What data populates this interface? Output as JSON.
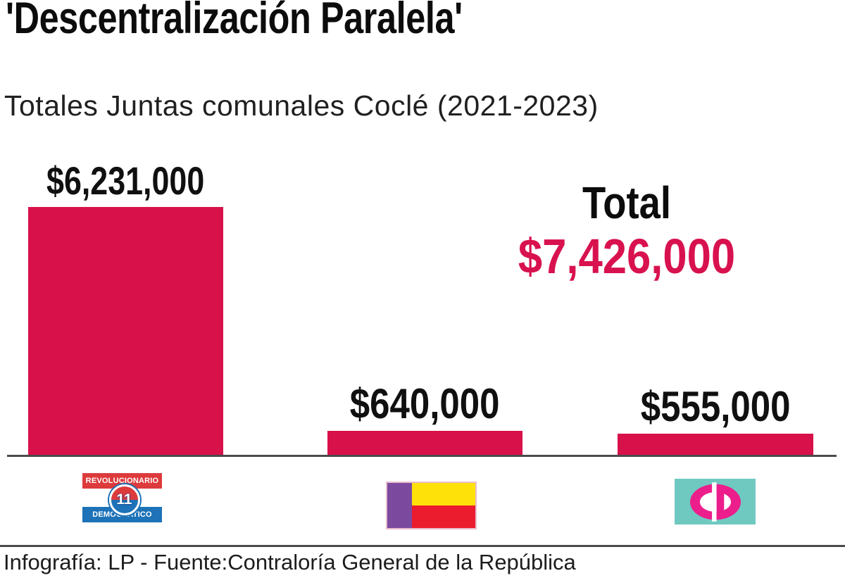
{
  "header": {
    "title": "'Descentralización Paralela'",
    "subtitle": "Totales Juntas comunales Coclé (2021-2023)"
  },
  "chart_data": {
    "type": "bar",
    "title": "Totales Juntas comunales Coclé (2021-2023)",
    "unit": "USD",
    "categories": [
      "Partido Revolucionario Democrático (PRD)",
      "Partido Panameñista",
      "Cambio Democrático (CD)"
    ],
    "values": [
      6231000,
      640000,
      555000
    ],
    "value_labels": [
      "$6,231,000",
      "$640,000",
      "$555,000"
    ],
    "total": {
      "label": "Total",
      "value": 7426000,
      "value_label": "$7,426,000"
    },
    "ylim": [
      0,
      6231000
    ],
    "grid": false,
    "legend": "logos-below-bars"
  },
  "colors": {
    "bar": "#d8114b",
    "total_value": "#d8124e",
    "axis": "#4a4a4a"
  },
  "logos": {
    "prd": {
      "band_top": "REVOLUCIONARIO",
      "band_bottom": "DEMOCRATICO",
      "number": "11",
      "colors": {
        "red": "#dd3a3c",
        "blue": "#1d72b8"
      }
    },
    "panamenista": {
      "colors": {
        "purple": "#7b4a9e",
        "yellow": "#ffe10a",
        "red": "#eb1c2e",
        "border": "#e9bccf"
      }
    },
    "cd": {
      "text": "CD",
      "colors": {
        "teal": "#6fc9c1",
        "pink": "#ec1e8c",
        "counter": "#ffffff"
      }
    }
  },
  "footer": {
    "source": "Infografía: LP - Fuente:Contraloría General de la República"
  }
}
